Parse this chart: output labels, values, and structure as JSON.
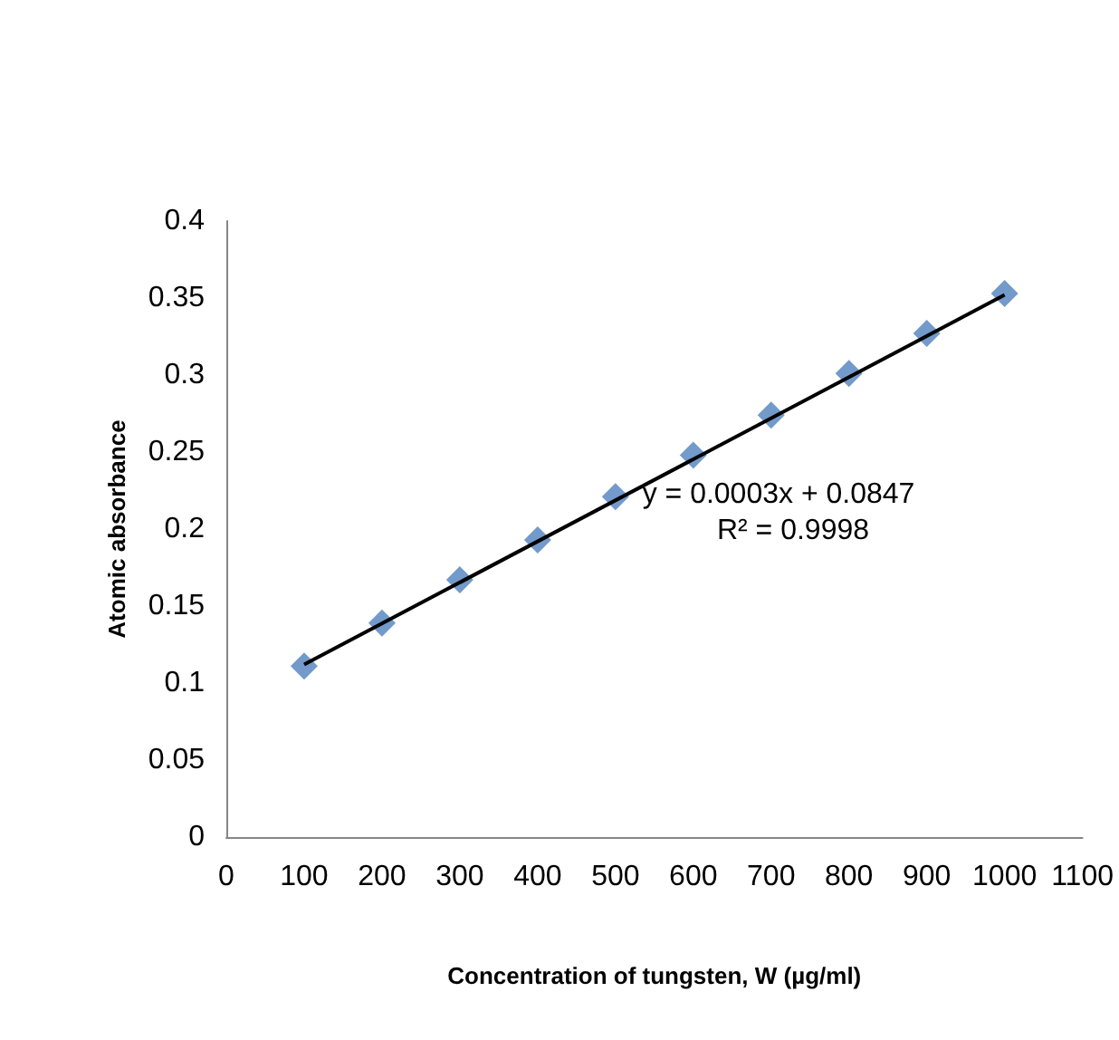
{
  "chart_data": {
    "type": "scatter",
    "xlabel": "Concentration of tungsten, W (µg/ml)",
    "ylabel": "Atomic absorbance",
    "x": [
      100,
      200,
      300,
      400,
      500,
      600,
      700,
      800,
      900,
      1000
    ],
    "series": [
      {
        "color": "#4f81bd",
        "values": [
          0.111,
          0.139,
          0.167,
          0.193,
          0.221,
          0.248,
          0.274,
          0.301,
          0.327,
          0.353
        ]
      },
      {
        "type": "line",
        "marker": "none",
        "color": "#000000",
        "x": [
          100,
          1000
        ],
        "values": [
          0.112,
          0.352
        ]
      }
    ],
    "marker": "diamond",
    "annotations": [
      "y = 0.0003x + 0.0847",
      "R² = 0.9998"
    ],
    "xlim": [
      0,
      1100
    ],
    "xticks": [
      0,
      100,
      200,
      300,
      400,
      500,
      600,
      700,
      800,
      900,
      1000,
      1100
    ],
    "ylim": [
      0,
      0.4
    ],
    "yticks": [
      0,
      0.05,
      0.1,
      0.15,
      0.2,
      0.25,
      0.3,
      0.35,
      0.4
    ],
    "grid": false
  }
}
